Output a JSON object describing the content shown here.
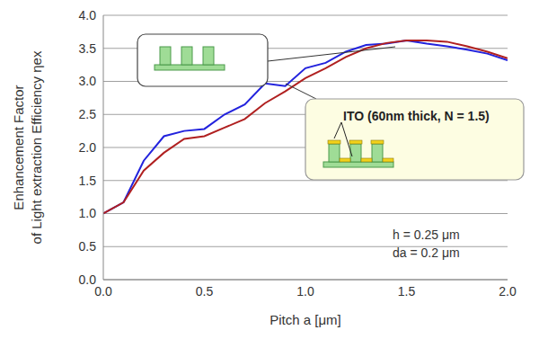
{
  "chart_data": {
    "type": "line",
    "xlabel": "Pitch a [μm]",
    "ylabel": [
      "Enhancement Factor",
      "of Light extraction Efficiency ηex"
    ],
    "annotations": [
      "h = 0.25 μm",
      "da = 0.2 μm"
    ],
    "x": [
      0.0,
      0.1,
      0.2,
      0.3,
      0.4,
      0.5,
      0.6,
      0.7,
      0.8,
      0.9,
      1.0,
      1.1,
      1.2,
      1.3,
      1.4,
      1.5,
      1.6,
      1.7,
      1.8,
      1.9,
      2.0
    ],
    "series": [
      {
        "color": "#2222dd",
        "values": [
          1.0,
          1.17,
          1.8,
          2.17,
          2.25,
          2.28,
          2.5,
          2.65,
          2.97,
          2.93,
          3.2,
          3.28,
          3.45,
          3.55,
          3.57,
          3.62,
          3.57,
          3.53,
          3.48,
          3.42,
          3.32
        ]
      },
      {
        "name": "ITO (60nm thick, N = 1.5)",
        "color": "#b02020",
        "values": [
          1.0,
          1.17,
          1.65,
          1.92,
          2.13,
          2.17,
          2.3,
          2.43,
          2.67,
          2.85,
          3.05,
          3.2,
          3.37,
          3.5,
          3.58,
          3.62,
          3.62,
          3.6,
          3.53,
          3.45,
          3.35
        ]
      }
    ],
    "xlim": [
      0,
      2
    ],
    "xticks": [
      {
        "value": 0,
        "label": "0.0"
      },
      {
        "value": 0.5,
        "label": "0.5"
      },
      {
        "value": 1,
        "label": "1.0"
      },
      {
        "value": 1.5,
        "label": "1.5"
      },
      {
        "value": 2,
        "label": "2.0"
      }
    ],
    "ylim": [
      0,
      4
    ],
    "yticks": [
      {
        "value": 0,
        "label": "0.0"
      },
      {
        "value": 0.5,
        "label": "0.5"
      },
      {
        "value": 1,
        "label": "1.0"
      },
      {
        "value": 1.5,
        "label": "1.5"
      },
      {
        "value": 2,
        "label": "2.0"
      },
      {
        "value": 2.5,
        "label": "2.5"
      },
      {
        "value": 3,
        "label": "3.0"
      },
      {
        "value": 3.5,
        "label": "3.5"
      },
      {
        "value": 4,
        "label": "4.0"
      }
    ],
    "grid": true
  }
}
